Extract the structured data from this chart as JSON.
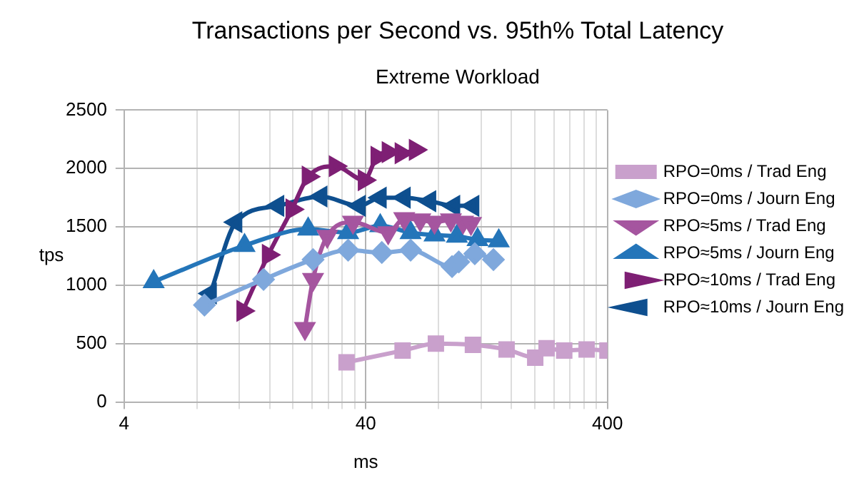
{
  "chart_data": {
    "type": "line",
    "title": "Transactions per Second vs. 95th% Total Latency",
    "subtitle": "Extreme Workload",
    "xlabel": "ms",
    "ylabel": "tps",
    "log": "x",
    "xlim": [
      4,
      400
    ],
    "xticks": [
      4,
      {
        "value": 8,
        "label": null
      },
      {
        "value": 12,
        "label": null
      },
      {
        "value": 16,
        "label": null
      },
      {
        "value": 20,
        "label": null
      },
      {
        "value": 24,
        "label": null
      },
      {
        "value": 28,
        "label": null
      },
      {
        "value": 32,
        "label": null
      },
      {
        "value": 36,
        "label": null
      },
      40,
      {
        "value": 80,
        "label": null
      },
      {
        "value": 120,
        "label": null
      },
      {
        "value": 160,
        "label": null
      },
      {
        "value": 200,
        "label": null
      },
      {
        "value": 240,
        "label": null
      },
      {
        "value": 280,
        "label": null
      },
      {
        "value": 320,
        "label": null
      },
      {
        "value": 360,
        "label": null
      },
      400
    ],
    "ylim": [
      0,
      2500
    ],
    "yticks": [
      0,
      500,
      1000,
      1500,
      2000,
      2500
    ],
    "grid": true,
    "legend": "right",
    "series": [
      {
        "name": "RPO=0ms / Trad Eng",
        "color": "#c9a0cc",
        "marker": "square",
        "x": [
          33.3,
          56.8,
          78,
          111,
          153,
          201,
          224,
          265,
          328,
          400
        ],
        "values": [
          340,
          440,
          500,
          490,
          450,
          380,
          460,
          440,
          450,
          440
        ]
      },
      {
        "name": "RPO=0ms / Journ Eng",
        "color": "#7fa8dc",
        "marker": "diamond",
        "x": [
          8.6,
          15.1,
          24.2,
          33.8,
          46.6,
          61.3,
          91,
          97,
          113,
          135
        ],
        "values": [
          830,
          1050,
          1220,
          1300,
          1280,
          1300,
          1160,
          1200,
          1270,
          1220
        ]
      },
      {
        "name": "RPO≈5ms / Trad Eng",
        "color": "#a5559f",
        "marker": "triangle-down",
        "x": [
          22.4,
          24.2,
          27.7,
          35.4,
          49.5,
          57.7,
          67.2,
          77,
          90,
          101,
          109
        ],
        "values": [
          630,
          1050,
          1420,
          1540,
          1450,
          1570,
          1560,
          1540,
          1560,
          1540,
          1530
        ]
      },
      {
        "name": "RPO≈5ms / Journ Eng",
        "color": "#2475b9",
        "marker": "triangle",
        "x": [
          5.3,
          12.6,
          23.1,
          33.8,
          45.9,
          61.3,
          77,
          95.3,
          116,
          142
        ],
        "values": [
          1030,
          1340,
          1480,
          1450,
          1510,
          1450,
          1430,
          1420,
          1390,
          1380
        ]
      },
      {
        "name": "RPO≈10ms / Trad Eng",
        "color": "#7e1f74",
        "marker": "triangle-right",
        "x": [
          12.4,
          15.8,
          19.8,
          23.1,
          29.9,
          39.4,
          44.5,
          49.5,
          56,
          64.1
        ],
        "values": [
          780,
          1260,
          1650,
          1930,
          2020,
          1900,
          2100,
          2140,
          2130,
          2160
        ]
      },
      {
        "name": "RPO≈10ms / Journ Eng",
        "color": "#0e4f8f",
        "marker": "triangle-left",
        "x": [
          9.1,
          11.6,
          17.3,
          26.1,
          37.6,
          45.9,
          57.7,
          73.6,
          92.5,
          111
        ],
        "values": [
          930,
          1540,
          1680,
          1760,
          1680,
          1750,
          1750,
          1720,
          1680,
          1680
        ]
      }
    ]
  }
}
